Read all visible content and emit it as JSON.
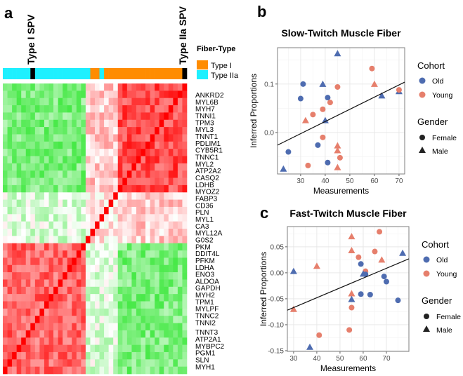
{
  "panel_labels": {
    "a": "a",
    "b": "b",
    "c": "c"
  },
  "heatmap": {
    "annotation_labels": {
      "spv1": "Type I SPV",
      "spv2": "Type IIa SPV"
    },
    "legend": {
      "title": "Fiber-Type",
      "items": [
        {
          "label": "Type I",
          "color": "#FF8C00"
        },
        {
          "label": "Type IIa",
          "color": "#1EF0FF"
        }
      ]
    },
    "genes": [
      "ANKRD2",
      "MYL6B",
      "MYH7",
      "TNNI1",
      "TPM3",
      "MYL3",
      "TNNT1",
      "PDLIM1",
      "CYB5R1",
      "TNNC1",
      "MYL2",
      "ATP2A2",
      "CASQ2",
      "LDHB",
      "MYOZ2",
      "FABP3",
      "CD36",
      "PLN",
      "MYL1",
      "CA3",
      "MYL12A",
      "G0S2",
      "PKM",
      "DDIT4L",
      "PFKM",
      "LDHA",
      "ENO3",
      "ALDOA",
      "GAPDH",
      "MYH2",
      "TPM1",
      "MYLPF",
      "TNNC2",
      "TNNI2",
      "TNNT3",
      "ATP2A1",
      "MYBPC2",
      "PGM1",
      "SLN",
      "MYH1"
    ],
    "column_types": [
      "IIa",
      "IIa",
      "IIa",
      "IIa",
      "IIa",
      "IIa",
      "SPV",
      "IIa",
      "IIa",
      "IIa",
      "IIa",
      "IIa",
      "IIa",
      "IIa",
      "IIa",
      "IIa",
      "IIa",
      "IIa",
      "IIa",
      "I",
      "I",
      "IIa",
      "I",
      "I",
      "I",
      "I",
      "I",
      "I",
      "I",
      "I",
      "I",
      "I",
      "I",
      "I",
      "I",
      "I",
      "I",
      "I",
      "I",
      "SPV"
    ]
  },
  "chart_data": [
    {
      "type": "heatmap",
      "title": "",
      "description_blocks": {
        "clusters": [
          [
            0,
            14
          ],
          [
            15,
            21
          ],
          [
            22,
            39
          ]
        ],
        "cluster_correlation": [
          [
            0.7,
            0.2,
            -0.5
          ],
          [
            0.2,
            0.1,
            -0.15
          ],
          [
            -0.5,
            -0.15,
            0.6
          ]
        ],
        "diagonal": 1.0,
        "column_order": "reversed",
        "color_low": "#00E000",
        "color_mid": "#FFFFFF",
        "color_high": "#FF0000"
      }
    },
    {
      "type": "scatter",
      "title": "Slow-Twitch Muscle Fiber",
      "xlabel": "Measurements",
      "ylabel": "Inferred Proportions",
      "xlim": [
        20.6,
        72.3
      ],
      "ylim": [
        -0.0855,
        0.175
      ],
      "xticks": [
        30,
        40,
        50,
        60,
        70
      ],
      "xtick_labels": [
        "30",
        "40",
        "50",
        "60",
        "70"
      ],
      "yticks": [
        0.0,
        0.1
      ],
      "ytick_labels": [
        "0.0",
        "0.1"
      ],
      "yminor": [
        -0.05,
        0.05,
        0.15
      ],
      "fit_line": [
        [
          20.6,
          -0.026
        ],
        [
          72.3,
          0.104
        ]
      ],
      "points": [
        {
          "x": 31,
          "y": 0.1,
          "cohort": "Old",
          "gender": "Female"
        },
        {
          "x": 30,
          "y": 0.07,
          "cohort": "Old",
          "gender": "Female"
        },
        {
          "x": 41,
          "y": 0.072,
          "cohort": "Old",
          "gender": "Female"
        },
        {
          "x": 37,
          "y": -0.026,
          "cohort": "Old",
          "gender": "Female"
        },
        {
          "x": 25,
          "y": -0.04,
          "cohort": "Old",
          "gender": "Female"
        },
        {
          "x": 41,
          "y": -0.062,
          "cohort": "Old",
          "gender": "Female"
        },
        {
          "x": 45,
          "y": 0.163,
          "cohort": "Old",
          "gender": "Male"
        },
        {
          "x": 39,
          "y": 0.1,
          "cohort": "Old",
          "gender": "Male"
        },
        {
          "x": 40,
          "y": 0.025,
          "cohort": "Old",
          "gender": "Male"
        },
        {
          "x": 63,
          "y": 0.076,
          "cohort": "Old",
          "gender": "Male"
        },
        {
          "x": 70,
          "y": 0.085,
          "cohort": "Old",
          "gender": "Male"
        },
        {
          "x": 23,
          "y": -0.075,
          "cohort": "Old",
          "gender": "Male"
        },
        {
          "x": 59,
          "y": 0.132,
          "cohort": "Young",
          "gender": "Female"
        },
        {
          "x": 45,
          "y": 0.094,
          "cohort": "Young",
          "gender": "Female"
        },
        {
          "x": 42,
          "y": 0.062,
          "cohort": "Young",
          "gender": "Female"
        },
        {
          "x": 39,
          "y": 0.048,
          "cohort": "Young",
          "gender": "Female"
        },
        {
          "x": 35,
          "y": 0.037,
          "cohort": "Young",
          "gender": "Female"
        },
        {
          "x": 39,
          "y": -0.01,
          "cohort": "Young",
          "gender": "Female"
        },
        {
          "x": 46,
          "y": -0.052,
          "cohort": "Young",
          "gender": "Female"
        },
        {
          "x": 33,
          "y": -0.068,
          "cohort": "Young",
          "gender": "Female"
        },
        {
          "x": 70,
          "y": 0.088,
          "cohort": "Young",
          "gender": "Female"
        },
        {
          "x": 60,
          "y": 0.1,
          "cohort": "Young",
          "gender": "Male"
        },
        {
          "x": 32,
          "y": 0.025,
          "cohort": "Young",
          "gender": "Male"
        },
        {
          "x": 45,
          "y": -0.027,
          "cohort": "Young",
          "gender": "Male"
        },
        {
          "x": 45,
          "y": -0.037,
          "cohort": "Young",
          "gender": "Male"
        },
        {
          "x": 45,
          "y": -0.072,
          "cohort": "Young",
          "gender": "Male"
        }
      ],
      "legend": {
        "cohort_title": "Cohort",
        "cohort": [
          {
            "label": "Old",
            "color": "#4E6CB0"
          },
          {
            "label": "Young",
            "color": "#E67F6C"
          }
        ],
        "gender_title": "Gender",
        "gender": [
          {
            "label": "Female",
            "shape": "circle"
          },
          {
            "label": "Male",
            "shape": "triangle"
          }
        ],
        "placement": "right"
      }
    },
    {
      "type": "scatter",
      "title": "Fast-Twitch Muscle Fiber",
      "xlabel": "Measurements",
      "ylabel": "Inferred Proportions",
      "xlim": [
        27.3,
        79.7
      ],
      "ylim": [
        -0.1514,
        0.089
      ],
      "xticks": [
        30,
        40,
        50,
        60,
        70
      ],
      "xtick_labels": [
        "30",
        "40",
        "50",
        "60",
        "70"
      ],
      "yticks": [
        0.05,
        0.0,
        -0.05,
        -0.1,
        -0.15
      ],
      "ytick_labels": [
        "0.05",
        "0.00",
        "-0.05",
        "-0.10",
        "-0.15"
      ],
      "yminor": [
        0.075,
        0.025,
        -0.025,
        -0.075,
        -0.125
      ],
      "fit_line": [
        [
          27.3,
          -0.072
        ],
        [
          79.7,
          0.027
        ]
      ],
      "points": [
        {
          "x": 55,
          "y": 0.07,
          "cohort": "Young",
          "gender": "Male"
        },
        {
          "x": 55,
          "y": 0.043,
          "cohort": "Young",
          "gender": "Male"
        },
        {
          "x": 40,
          "y": 0.013,
          "cohort": "Young",
          "gender": "Male"
        },
        {
          "x": 68,
          "y": 0.025,
          "cohort": "Young",
          "gender": "Male"
        },
        {
          "x": 55,
          "y": -0.04,
          "cohort": "Young",
          "gender": "Male"
        },
        {
          "x": 30,
          "y": -0.07,
          "cohort": "Young",
          "gender": "Male"
        },
        {
          "x": 67,
          "y": 0.079,
          "cohort": "Young",
          "gender": "Female"
        },
        {
          "x": 65,
          "y": 0.041,
          "cohort": "Young",
          "gender": "Female"
        },
        {
          "x": 58,
          "y": 0.03,
          "cohort": "Young",
          "gender": "Female"
        },
        {
          "x": 61,
          "y": 0.003,
          "cohort": "Young",
          "gender": "Female"
        },
        {
          "x": 55,
          "y": -0.067,
          "cohort": "Young",
          "gender": "Female"
        },
        {
          "x": 54,
          "y": -0.11,
          "cohort": "Young",
          "gender": "Female"
        },
        {
          "x": 41,
          "y": -0.12,
          "cohort": "Young",
          "gender": "Female"
        },
        {
          "x": 59,
          "y": 0.017,
          "cohort": "Old",
          "gender": "Female"
        },
        {
          "x": 69,
          "y": -0.007,
          "cohort": "Old",
          "gender": "Female"
        },
        {
          "x": 70,
          "y": -0.017,
          "cohort": "Old",
          "gender": "Female"
        },
        {
          "x": 59,
          "y": -0.041,
          "cohort": "Old",
          "gender": "Female"
        },
        {
          "x": 63,
          "y": -0.042,
          "cohort": "Old",
          "gender": "Female"
        },
        {
          "x": 75,
          "y": -0.053,
          "cohort": "Old",
          "gender": "Female"
        },
        {
          "x": 61,
          "y": -0.003,
          "cohort": "Old",
          "gender": "Female"
        },
        {
          "x": 30,
          "y": 0.003,
          "cohort": "Old",
          "gender": "Male"
        },
        {
          "x": 77,
          "y": 0.038,
          "cohort": "Old",
          "gender": "Male"
        },
        {
          "x": 60,
          "y": -0.002,
          "cohort": "Old",
          "gender": "Male"
        },
        {
          "x": 55,
          "y": -0.051,
          "cohort": "Old",
          "gender": "Male"
        },
        {
          "x": 37,
          "y": -0.143,
          "cohort": "Old",
          "gender": "Male"
        }
      ],
      "legend": {
        "cohort_title": "Cohort",
        "cohort": [
          {
            "label": "Old",
            "color": "#4E6CB0"
          },
          {
            "label": "Young",
            "color": "#E67F6C"
          }
        ],
        "gender_title": "Gender",
        "gender": [
          {
            "label": "Female",
            "shape": "circle"
          },
          {
            "label": "Male",
            "shape": "triangle"
          }
        ],
        "placement": "right"
      }
    }
  ]
}
